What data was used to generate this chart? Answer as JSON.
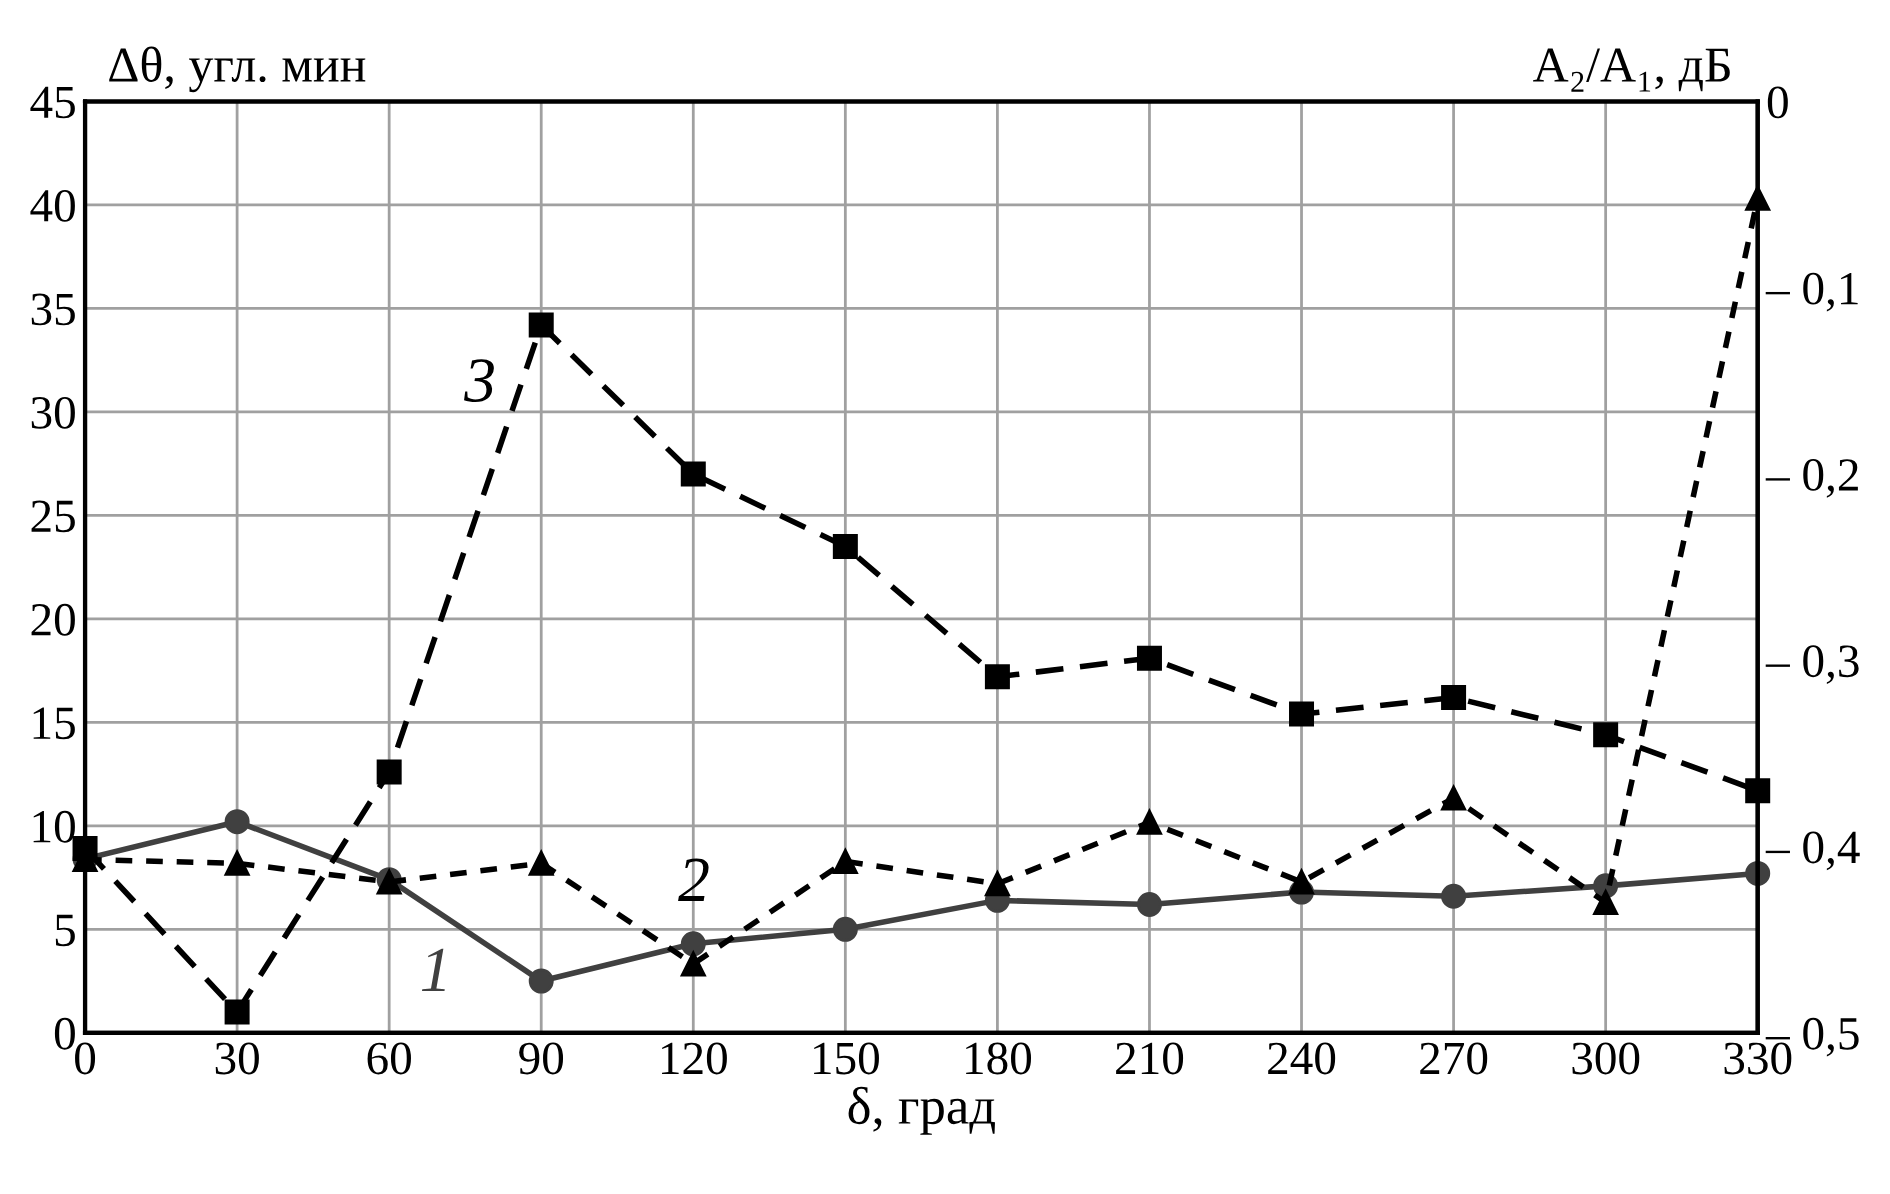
{
  "chart_data": {
    "type": "line",
    "xlabel": "δ, град",
    "ylabel": "Δθ, угл. мин",
    "y2label": "A₂/A₁, дБ",
    "x": [
      0,
      30,
      60,
      90,
      120,
      150,
      180,
      210,
      240,
      270,
      300,
      330
    ],
    "series": [
      {
        "name": "1",
        "values": [
          8.4,
          10.2,
          7.4,
          2.5,
          4.3,
          5.0,
          6.4,
          6.2,
          6.8,
          6.6,
          7.1,
          7.7
        ],
        "color": "#404040",
        "marker": "circle",
        "line_style": "solid"
      },
      {
        "name": "2",
        "values": [
          -0.407,
          -0.409,
          -0.419,
          -0.409,
          -0.463,
          -0.408,
          -0.42,
          -0.387,
          -0.419,
          -0.374,
          -0.43,
          -0.052
        ],
        "color": "#000000",
        "marker": "triangle",
        "line_style": "dotted",
        "axis": "y2"
      },
      {
        "name": "3",
        "values": [
          8.9,
          1.0,
          12.6,
          34.2,
          27.0,
          23.5,
          17.2,
          18.1,
          15.4,
          16.2,
          14.4,
          11.7
        ],
        "color": "#000000",
        "marker": "square",
        "line_style": "dashed"
      }
    ],
    "xlim": [
      0,
      330
    ],
    "xticks": [
      0,
      30,
      60,
      90,
      120,
      150,
      180,
      210,
      240,
      270,
      300,
      330
    ],
    "ylim": [
      0,
      45
    ],
    "yticks": [
      0,
      5,
      10,
      15,
      20,
      25,
      30,
      35,
      40,
      45
    ],
    "y2lim": [
      -0.5,
      0
    ],
    "y2ticks": [
      {
        "value": 0,
        "label": "0"
      },
      {
        "value": -0.1,
        "label": "– 0,1"
      },
      {
        "value": -0.2,
        "label": "– 0,2"
      },
      {
        "value": -0.3,
        "label": "– 0,3"
      },
      {
        "value": -0.4,
        "label": "– 0,4"
      },
      {
        "value": -0.5,
        "label": "– 0,5"
      }
    ],
    "grid": true
  }
}
